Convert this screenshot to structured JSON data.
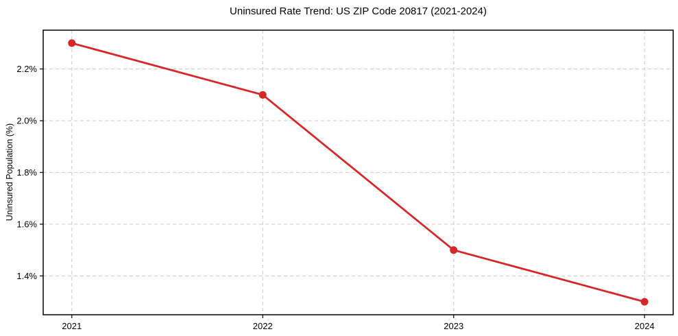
{
  "chart_data": {
    "type": "line",
    "title": "Uninsured Rate Trend: US ZIP Code 20817 (2021-2024)",
    "ylabel": "Uninsured Population (%)",
    "xlabel": "",
    "x": [
      2021,
      2022,
      2023,
      2024
    ],
    "x_tick_labels": [
      "2021",
      "2022",
      "2023",
      "2024"
    ],
    "values": [
      2.3,
      2.1,
      1.5,
      1.3
    ],
    "y_ticks": [
      1.4,
      1.6,
      1.8,
      2.0,
      2.2
    ],
    "y_tick_labels": [
      "1.4%",
      "1.6%",
      "1.8%",
      "2.0%",
      "2.2%"
    ],
    "xlim": [
      2020.85,
      2024.15
    ],
    "ylim": [
      1.25,
      2.35
    ],
    "grid": true,
    "grid_style": "dashed",
    "grid_color": "#cccccc",
    "line_color": "#d62728",
    "marker": "circle",
    "marker_color": "#d62728",
    "axis_color": "#000000",
    "background_color": "#ffffff",
    "legend_position": "none"
  }
}
